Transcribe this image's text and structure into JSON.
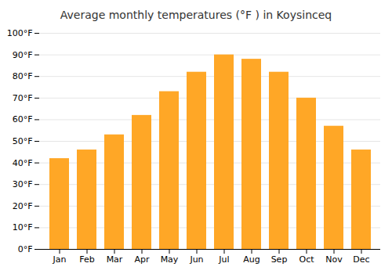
{
  "chart_data": {
    "type": "bar",
    "title": "Average monthly temperatures (°F ) in Koysinceq",
    "categories": [
      "Jan",
      "Feb",
      "Mar",
      "Apr",
      "May",
      "Jun",
      "Jul",
      "Aug",
      "Sep",
      "Oct",
      "Nov",
      "Dec"
    ],
    "values": [
      42,
      46,
      53,
      62,
      73,
      82,
      90,
      88,
      82,
      70,
      57,
      46
    ],
    "color": "#FFA726",
    "ylim": [
      0,
      100
    ],
    "yticks": [
      {
        "value": 0,
        "label": "0°F"
      },
      {
        "value": 10,
        "label": "10°F"
      },
      {
        "value": 20,
        "label": "20°F"
      },
      {
        "value": 30,
        "label": "30°F"
      },
      {
        "value": 40,
        "label": "40°F"
      },
      {
        "value": 50,
        "label": "50°F"
      },
      {
        "value": 60,
        "label": "60°F"
      },
      {
        "value": 70,
        "label": "70°F"
      },
      {
        "value": 80,
        "label": "80°F"
      },
      {
        "value": 90,
        "label": "90°F"
      },
      {
        "value": 100,
        "label": "100°F"
      }
    ],
    "grid": true
  }
}
